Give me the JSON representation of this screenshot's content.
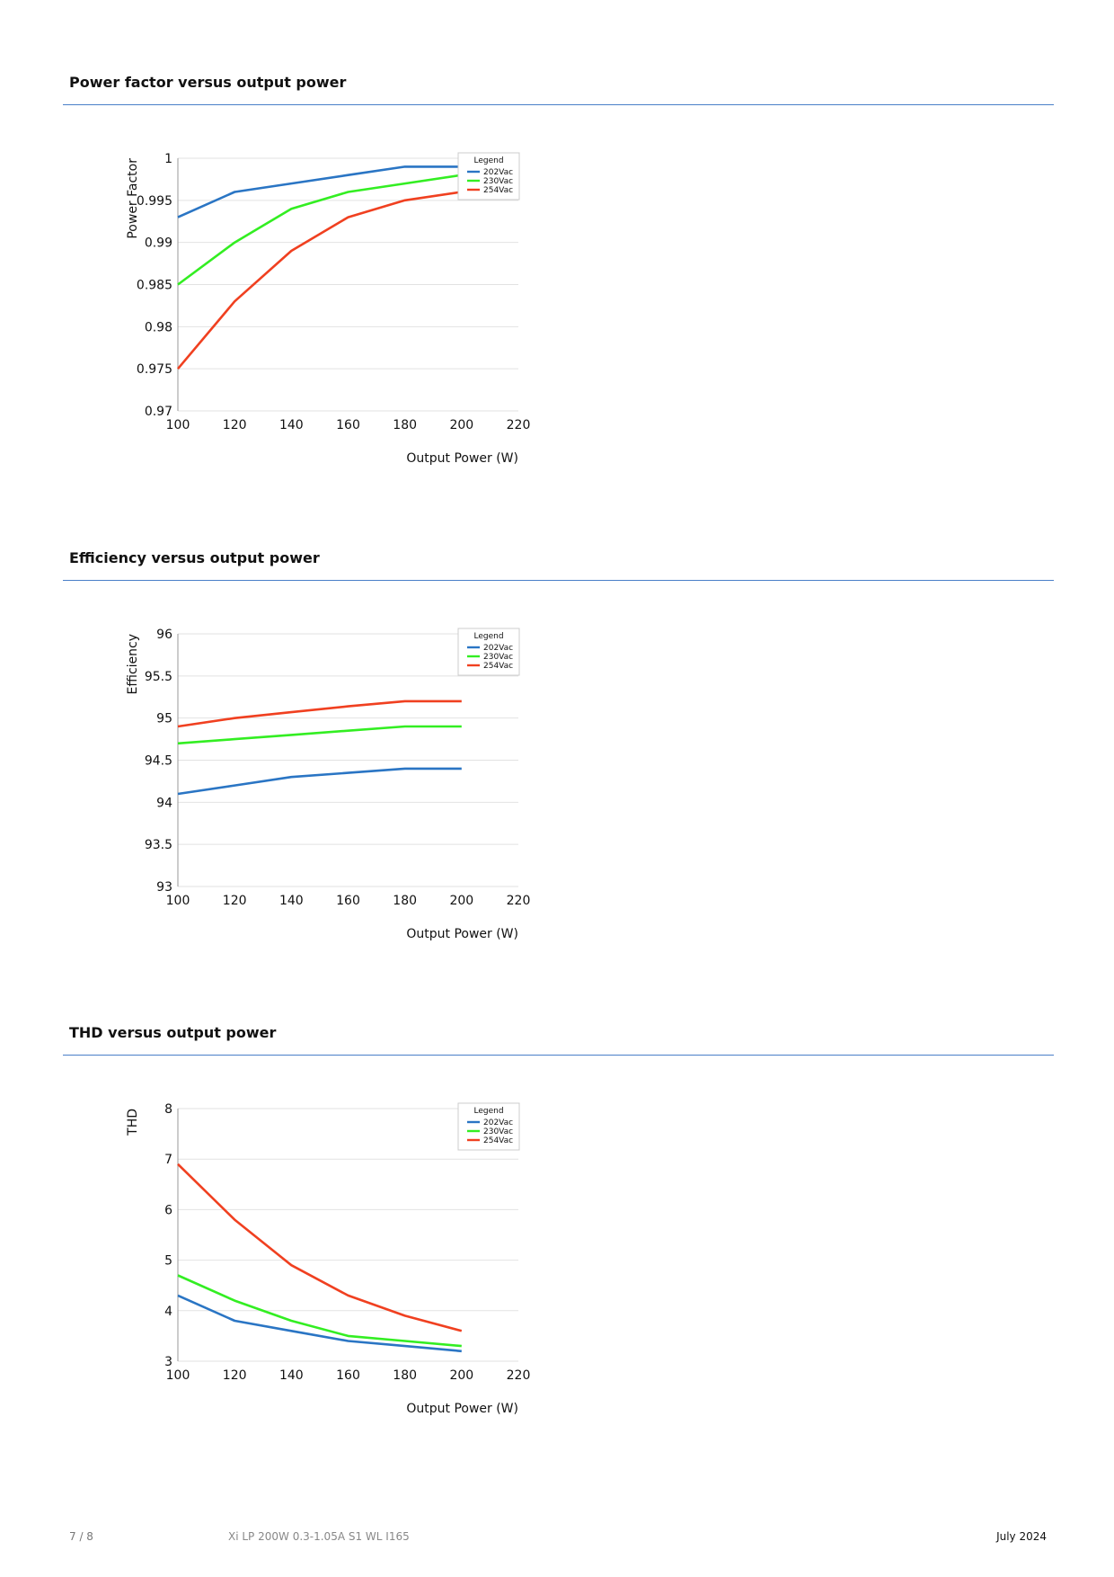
{
  "sections": [
    {
      "title": "Power factor versus output power"
    },
    {
      "title": "Efficiency versus output power"
    },
    {
      "title": "THD versus output power"
    }
  ],
  "chart_data": [
    {
      "type": "line",
      "title": "",
      "xlabel": "Output Power (W)",
      "ylabel": "Power Factor",
      "xlim": [
        100,
        220
      ],
      "ylim": [
        0.97,
        1
      ],
      "x_ticks": [
        "100",
        "120",
        "140",
        "160",
        "180",
        "200",
        "220"
      ],
      "y_ticks": [
        "1",
        "0.995",
        "0.99",
        "0.985",
        "0.98",
        "0.975",
        "0.97"
      ],
      "grid": true,
      "legend": {
        "title": "Legend",
        "position": "top-right"
      },
      "x": [
        100,
        120,
        140,
        160,
        180,
        200
      ],
      "series": [
        {
          "name": "202Vac",
          "color": "#2a75c4",
          "values": [
            0.993,
            0.996,
            0.997,
            0.998,
            0.999,
            0.999
          ]
        },
        {
          "name": "230Vac",
          "color": "#33ee22",
          "values": [
            0.985,
            0.99,
            0.994,
            0.996,
            0.997,
            0.998
          ]
        },
        {
          "name": "254Vac",
          "color": "#f04020",
          "values": [
            0.975,
            0.983,
            0.989,
            0.993,
            0.995,
            0.996
          ]
        }
      ]
    },
    {
      "type": "line",
      "title": "",
      "xlabel": "Output Power (W)",
      "ylabel": "Efficiency",
      "xlim": [
        100,
        220
      ],
      "ylim": [
        93,
        96
      ],
      "x_ticks": [
        "100",
        "120",
        "140",
        "160",
        "180",
        "200",
        "220"
      ],
      "y_ticks": [
        "96",
        "95.5",
        "95",
        "94.5",
        "94",
        "93.5",
        "93"
      ],
      "grid": true,
      "legend": {
        "title": "Legend",
        "position": "top-right"
      },
      "x": [
        100,
        120,
        140,
        160,
        180,
        200
      ],
      "series": [
        {
          "name": "202Vac",
          "color": "#2a75c4",
          "values": [
            94.1,
            94.2,
            94.3,
            94.35,
            94.4,
            94.4
          ]
        },
        {
          "name": "230Vac",
          "color": "#33ee22",
          "values": [
            94.7,
            94.75,
            94.8,
            94.85,
            94.9,
            94.9
          ]
        },
        {
          "name": "254Vac",
          "color": "#f04020",
          "values": [
            94.9,
            95.0,
            95.07,
            95.14,
            95.2,
            95.2
          ]
        }
      ]
    },
    {
      "type": "line",
      "title": "",
      "xlabel": "Output Power (W)",
      "ylabel": "THD",
      "xlim": [
        100,
        220
      ],
      "ylim": [
        3,
        8
      ],
      "x_ticks": [
        "100",
        "120",
        "140",
        "160",
        "180",
        "200",
        "220"
      ],
      "y_ticks": [
        "8",
        "7",
        "6",
        "5",
        "4",
        "3"
      ],
      "grid": true,
      "legend": {
        "title": "Legend",
        "position": "top-right"
      },
      "x": [
        100,
        120,
        140,
        160,
        180,
        200
      ],
      "series": [
        {
          "name": "202Vac",
          "color": "#2a75c4",
          "values": [
            4.3,
            3.8,
            3.6,
            3.4,
            3.3,
            3.2
          ]
        },
        {
          "name": "230Vac",
          "color": "#33ee22",
          "values": [
            4.7,
            4.2,
            3.8,
            3.5,
            3.4,
            3.3
          ]
        },
        {
          "name": "254Vac",
          "color": "#f04020",
          "values": [
            6.9,
            5.8,
            4.9,
            4.3,
            3.9,
            3.6
          ]
        }
      ]
    }
  ],
  "footer": {
    "page": "7 / 8",
    "product": "Xi LP 200W 0.3-1.05A S1 WL I165",
    "date": "July 2024"
  }
}
